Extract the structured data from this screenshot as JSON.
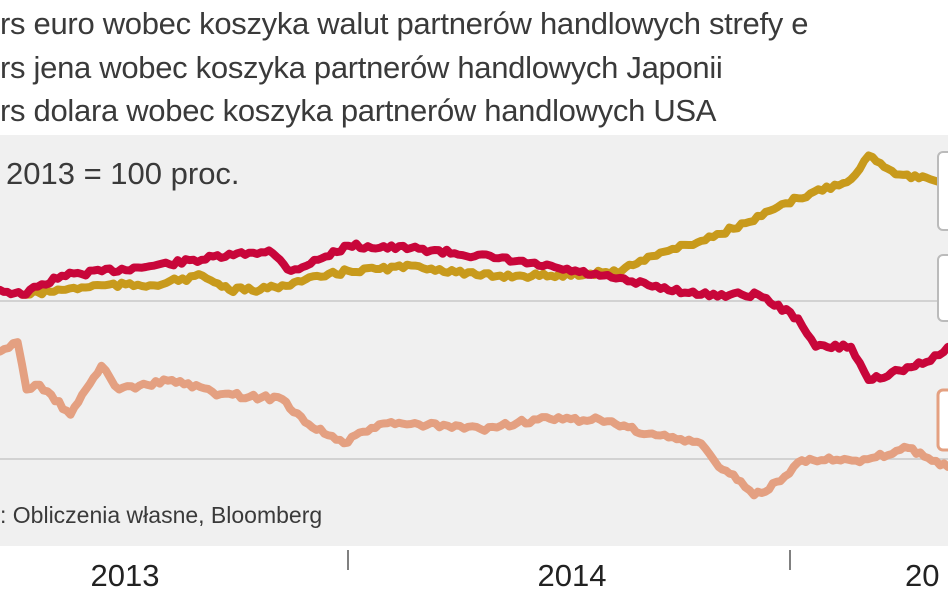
{
  "title_lines": [
    "rs euro wobec koszyka walut partnerów handlowych strefy e",
    "rs jena wobec koszyka partnerów handlowych Japonii",
    "rs dolara wobec koszyka partnerów handlowych USA"
  ],
  "chart_data": {
    "type": "line",
    "title": "Kurs euro / jena / dolara wobec koszyków walut partnerów handlowych",
    "subtitle": "2013 = 100 proc.",
    "source": ": Obliczenia własne, Bloomberg",
    "xlabel": "",
    "ylabel": "",
    "x_ticks": [
      "2013",
      "2014",
      "20"
    ],
    "x_range": [
      2013.21,
      2015.36
    ],
    "ylim": [
      84.5,
      110.5
    ],
    "gridlines_y": [
      100,
      90
    ],
    "grid": true,
    "colors": {
      "euro": "#c8063a",
      "dolar": "#c89a1c",
      "jen": "#e4a081",
      "background": "#f0f0f0"
    },
    "series": [
      {
        "name": "euro",
        "color": "#c8063a",
        "points": [
          [
            2013.21,
            100.7
          ],
          [
            2013.26,
            100.4
          ],
          [
            2013.35,
            101.6
          ],
          [
            2013.55,
            102.2
          ],
          [
            2013.82,
            103.2
          ],
          [
            2013.87,
            101.9
          ],
          [
            2013.94,
            102.7
          ],
          [
            2014.0,
            103.5
          ],
          [
            2014.16,
            103.3
          ],
          [
            2014.34,
            102.7
          ],
          [
            2014.57,
            101.6
          ],
          [
            2014.68,
            101.0
          ],
          [
            2014.8,
            100.4
          ],
          [
            2014.93,
            100.4
          ],
          [
            2015.02,
            98.9
          ],
          [
            2015.06,
            97.1
          ],
          [
            2015.14,
            97.1
          ],
          [
            2015.18,
            95.0
          ],
          [
            2015.25,
            95.6
          ],
          [
            2015.32,
            96.2
          ],
          [
            2015.36,
            97.1
          ]
        ]
      },
      {
        "name": "dolar",
        "color": "#c89a1c",
        "points": [
          [
            2013.26,
            100.4
          ],
          [
            2013.35,
            100.7
          ],
          [
            2013.44,
            101.0
          ],
          [
            2013.55,
            101.0
          ],
          [
            2013.67,
            101.6
          ],
          [
            2013.73,
            100.7
          ],
          [
            2013.8,
            100.7
          ],
          [
            2013.85,
            101.0
          ],
          [
            2014.0,
            101.9
          ],
          [
            2014.16,
            102.2
          ],
          [
            2014.3,
            101.6
          ],
          [
            2014.46,
            101.6
          ],
          [
            2014.62,
            101.9
          ],
          [
            2014.68,
            102.8
          ],
          [
            2014.8,
            103.8
          ],
          [
            2014.91,
            105.0
          ],
          [
            2015.02,
            106.5
          ],
          [
            2015.14,
            107.7
          ],
          [
            2015.18,
            109.2
          ],
          [
            2015.25,
            108.0
          ],
          [
            2015.32,
            107.7
          ],
          [
            2015.36,
            107.1
          ]
        ]
      },
      {
        "name": "jen",
        "color": "#e4a081",
        "points": [
          [
            2013.21,
            96.8
          ],
          [
            2013.25,
            97.4
          ],
          [
            2013.27,
            94.4
          ],
          [
            2013.3,
            94.7
          ],
          [
            2013.37,
            92.8
          ],
          [
            2013.44,
            95.9
          ],
          [
            2013.48,
            94.4
          ],
          [
            2013.6,
            95.0
          ],
          [
            2013.71,
            94.1
          ],
          [
            2013.85,
            93.8
          ],
          [
            2013.91,
            92.2
          ],
          [
            2013.99,
            91.0
          ],
          [
            2014.07,
            92.2
          ],
          [
            2014.16,
            92.2
          ],
          [
            2014.3,
            91.9
          ],
          [
            2014.43,
            92.5
          ],
          [
            2014.57,
            92.5
          ],
          [
            2014.68,
            91.6
          ],
          [
            2014.8,
            91.0
          ],
          [
            2014.84,
            89.5
          ],
          [
            2014.89,
            88.6
          ],
          [
            2014.92,
            87.7
          ],
          [
            2014.98,
            88.6
          ],
          [
            2015.02,
            89.8
          ],
          [
            2015.09,
            90.1
          ],
          [
            2015.16,
            89.8
          ],
          [
            2015.27,
            90.7
          ],
          [
            2015.36,
            89.5
          ]
        ]
      }
    ]
  }
}
